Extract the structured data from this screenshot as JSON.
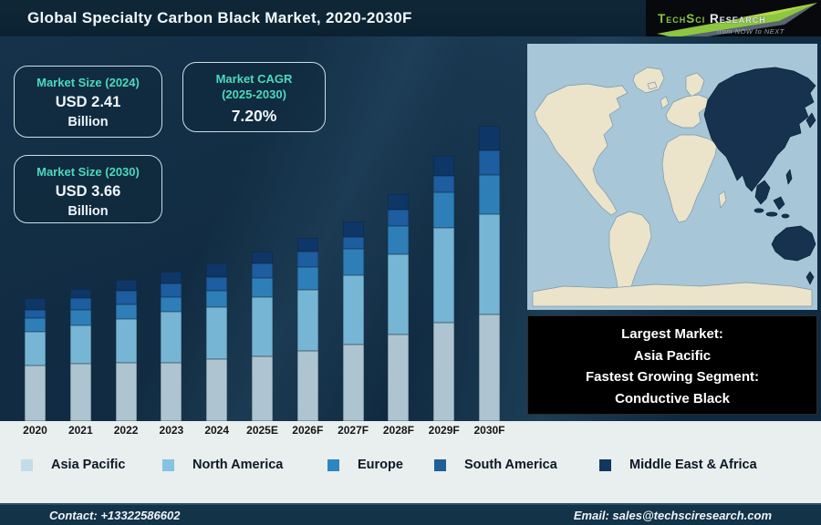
{
  "title": "Global Specialty Carbon Black Market, 2020-2030F",
  "logo": {
    "brand_primary": "TechSci",
    "brand_secondary": "Research",
    "tagline": "from NOW to NEXT",
    "arrow_icon_color": "#8dc63f"
  },
  "info_boxes": {
    "size_2024": {
      "label": "Market Size (2024)",
      "value": "USD 2.41",
      "unit": "Billion"
    },
    "cagr": {
      "label_line1": "Market CAGR",
      "label_line2": "(2025-2030)",
      "value": "7.20%"
    },
    "size_2030": {
      "label": "Market Size (2030)",
      "value": "USD 3.66",
      "unit": "Billion"
    }
  },
  "chart_data": {
    "type": "bar",
    "stacked": true,
    "title": "Global Specialty Carbon Black Market, 2020-2030F",
    "categories": [
      "2020",
      "2021",
      "2022",
      "2023",
      "2024",
      "2025E",
      "2026F",
      "2027F",
      "2028F",
      "2029F",
      "2030F"
    ],
    "series": [
      {
        "name": "Asia Pacific",
        "color": "#aec5d1",
        "values": [
          61,
          63,
          64,
          64,
          68,
          71,
          77,
          84,
          95,
          108,
          117
        ]
      },
      {
        "name": "North America",
        "color": "#77b5d5",
        "values": [
          37,
          42,
          48,
          56,
          57,
          65,
          67,
          76,
          88,
          104,
          110
        ]
      },
      {
        "name": "Europe",
        "color": "#2e7fb8",
        "values": [
          15,
          17,
          16,
          16,
          18,
          21,
          25,
          29,
          31,
          39,
          43
        ]
      },
      {
        "name": "South America",
        "color": "#1d5da0",
        "values": [
          9,
          13,
          15,
          15,
          15,
          16,
          17,
          13,
          18,
          18,
          27
        ]
      },
      {
        "name": "Middle East & Africa",
        "color": "#0e3767",
        "values": [
          13,
          10,
          12,
          13,
          15,
          13,
          15,
          17,
          17,
          22,
          27
        ]
      }
    ],
    "value_axis": "none shown (segment values are relative heights in px; no numeric axis in figure)",
    "grid": false,
    "legend_position": "bottom",
    "annotations": {
      "market_size_2024": "USD 2.41 Billion",
      "market_cagr_2025_2030": "7.20%",
      "market_size_2030": "USD 3.66 Billion",
      "largest_market": "Asia Pacific",
      "fastest_growing_segment": "Conductive Black"
    }
  },
  "callout": {
    "lines": [
      "Largest Market:",
      "Asia Pacific",
      "Fastest Growing Segment:",
      "Conductive Black"
    ]
  },
  "legend": {
    "items": [
      {
        "label": "Asia Pacific",
        "color": "#c3dcea"
      },
      {
        "label": "North America",
        "color": "#85c3e2"
      },
      {
        "label": "Europe",
        "color": "#2e86c1"
      },
      {
        "label": "South America",
        "color": "#1f5f96"
      },
      {
        "label": "Middle East & Africa",
        "color": "#11375f"
      }
    ]
  },
  "footer": {
    "contact": "Contact: +13322586602",
    "email": "Email: sales@techsciresearch.com"
  }
}
